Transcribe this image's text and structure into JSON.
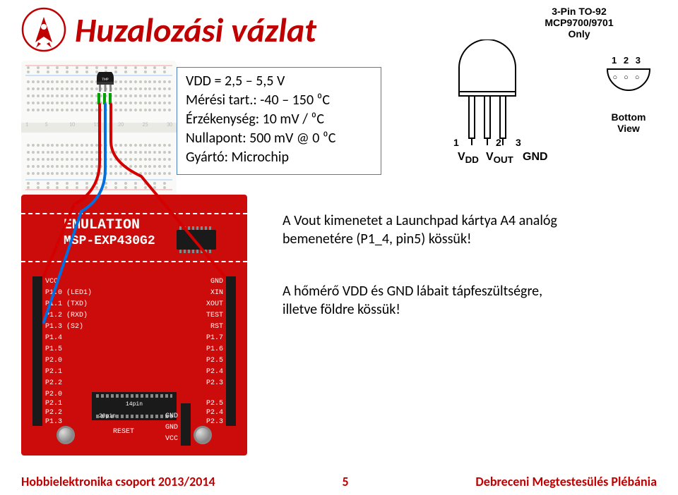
{
  "title": "Huzalozási vázlat",
  "spec": {
    "vdd": "VDD = 2,5 – 5,5 V",
    "range": "Mérési tart.: -40 – 150 ⁰C",
    "sens": "Érzékenység: 10 mV / ⁰C",
    "null": "Nullapont: 500 mV @ 0 ⁰C",
    "mfr": "Gyártó: Microchip"
  },
  "info1": "A Vout kimenetet a Launchpad kártya A4 analóg bemenetére (P1_4, pin5) kössük!",
  "info2": "A hőmérő VDD és GND lábait tápfeszültségre, illetve földre kössük!",
  "pinout": {
    "title1": "3-Pin TO-92",
    "title2": "MCP9700/9701",
    "title3": "Only",
    "one": "1",
    "two": "2",
    "three": "3",
    "p123": "1 2 3",
    "circles": "○ ○ ○",
    "vdd": "V",
    "vdd_sub": "DD",
    "vout": "V",
    "vout_sub": "OUT",
    "gnd": "GND",
    "bottom": "Bottom",
    "view": "View"
  },
  "launchpad": {
    "emul": "EMULATION",
    "board": "MSP-EXP430G2",
    "left_pins": [
      "VCC",
      "P1.0 (LED1)",
      "P1.1 (TXD)",
      "P1.2 (RXD)",
      "P1.3 (S2)",
      "P1.4",
      "P1.5",
      "P2.0",
      "P2.1",
      "P2.2"
    ],
    "right_pins": [
      "GND",
      "XIN",
      "XOUT",
      "TEST",
      "RST",
      "P1.7",
      "P1.6",
      "P2.5",
      "P2.4",
      "P2.3"
    ],
    "lower_left": [
      "P2.0",
      "P2.1",
      "P2.2",
      "P1.3"
    ],
    "lower_right": [
      "P2.5",
      "P2.4",
      "P2.3"
    ],
    "btm_header": [
      "GND",
      "GND",
      "VCC"
    ],
    "reset": "RESET",
    "pin14": "14pin",
    "pin20": "20pin"
  },
  "bb_ticks": [
    "1",
    "5",
    "10",
    "15",
    "20",
    "25",
    "30"
  ],
  "footer": {
    "left": "Hobbielektronika csoport 2013/2014",
    "page": "5",
    "right": "Debreceni Megtestesülés Plébánia"
  },
  "colors": {
    "accent": "#c00000",
    "spec_border": "#4a7ebb",
    "launchpad": "#cc0b0b",
    "wire_red": "#d40000",
    "wire_blue": "#0070e0",
    "wire_green": "#00a000"
  }
}
